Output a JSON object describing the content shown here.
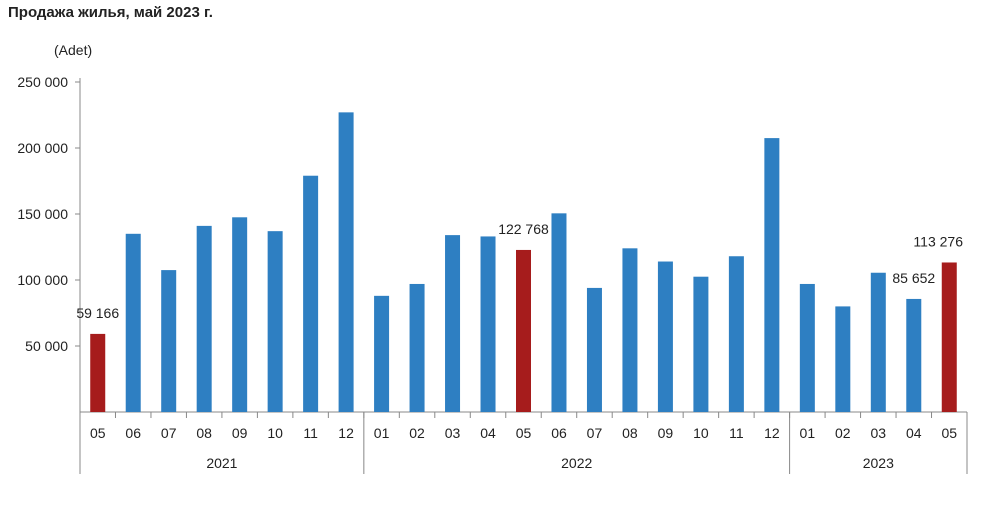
{
  "title": "Продажа жилья, май 2023 г.",
  "unit": "(Adet)",
  "colors": {
    "normal": "#2e7fc2",
    "highlight": "#a61c1c"
  },
  "chart_data": {
    "type": "bar",
    "title": "Продажа жилья, май 2023 г.",
    "ylabel": "(Adet)",
    "ylim": [
      0,
      250000
    ],
    "yticks": [
      50000,
      100000,
      150000,
      200000,
      250000
    ],
    "ytick_labels": [
      "50 000",
      "100 000",
      "150 000",
      "200 000",
      "250 000"
    ],
    "grid": false,
    "categories": [
      "05",
      "06",
      "07",
      "08",
      "09",
      "10",
      "11",
      "12",
      "01",
      "02",
      "03",
      "04",
      "05",
      "06",
      "07",
      "08",
      "09",
      "10",
      "11",
      "12",
      "01",
      "02",
      "03",
      "04",
      "05"
    ],
    "values": [
      59166,
      135000,
      107500,
      141000,
      147500,
      137000,
      179000,
      227000,
      88000,
      97000,
      134000,
      133000,
      122768,
      150500,
      94000,
      124000,
      114000,
      102500,
      118000,
      207500,
      97000,
      80000,
      105500,
      85652,
      113276
    ],
    "highlight": [
      0,
      12,
      24
    ],
    "year_groups": [
      {
        "label": "2021",
        "start": 0,
        "count": 8
      },
      {
        "label": "2022",
        "start": 8,
        "count": 12
      },
      {
        "label": "2023",
        "start": 20,
        "count": 5
      }
    ],
    "data_labels": [
      {
        "index": 0,
        "text": "59 166"
      },
      {
        "index": 12,
        "text": "122 768"
      },
      {
        "index": 23,
        "text": "85 652"
      },
      {
        "index": 24,
        "text": "113 276"
      }
    ]
  }
}
